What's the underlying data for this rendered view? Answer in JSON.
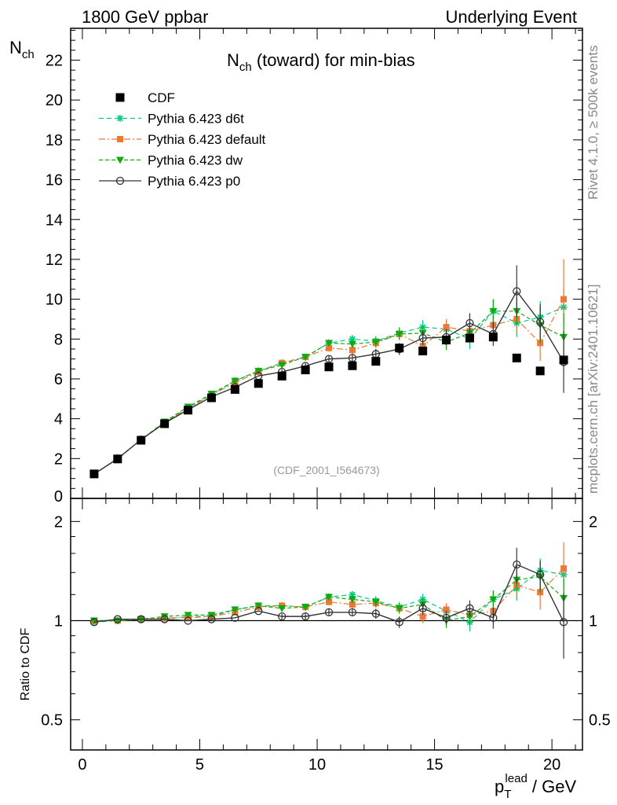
{
  "header": {
    "left": "1800 GeV ppbar",
    "right": "Underlying Event"
  },
  "side_labels": {
    "rivet": "Rivet 4.1.0, ≥ 500k events",
    "mcplots": "mcplots.cern.ch [arXiv:2401.10621]"
  },
  "colors": {
    "CDF": "#000000",
    "d6t": "#00cc88",
    "default": "#ee7733",
    "dw": "#11aa11",
    "p0": "#333333"
  },
  "chart_data": [
    {
      "type": "scatter",
      "title_main": "N",
      "title_sub": "ch",
      "title_rest": " (toward) for min-bias",
      "ylabel_main": "N",
      "ylabel_sub": "ch",
      "watermark": "(CDF_2001_I564673)",
      "ylim": [
        0,
        23.6
      ],
      "xlim": [
        -0.5,
        21.3
      ],
      "y_ticks": [
        "2",
        "4",
        "6",
        "8",
        "10",
        "12",
        "14",
        "16",
        "18",
        "20",
        "22"
      ],
      "y_tick_values": [
        2,
        4,
        6,
        8,
        10,
        12,
        14,
        16,
        18,
        20,
        22
      ],
      "y_zero_label": "0",
      "x": [
        0.5,
        1.5,
        2.5,
        3.5,
        4.5,
        5.5,
        6.5,
        7.5,
        8.5,
        9.5,
        10.5,
        11.5,
        12.5,
        13.5,
        14.5,
        15.5,
        16.5,
        17.5,
        18.5,
        19.5,
        20.5
      ],
      "series": [
        {
          "name": "CDF",
          "key": "CDF",
          "label": "CDF",
          "values": [
            1.23,
            1.98,
            2.92,
            3.75,
            4.43,
            5.05,
            5.47,
            5.77,
            6.14,
            6.45,
            6.6,
            6.66,
            6.88,
            7.55,
            7.4,
            7.95,
            8.05,
            8.1,
            7.05,
            6.4,
            6.95
          ]
        },
        {
          "name": "Pythia 6.423 d6t",
          "key": "d6t",
          "label": "Pythia 6.423 d6t",
          "values": [
            1.22,
            1.98,
            2.95,
            3.8,
            4.55,
            5.2,
            5.9,
            6.4,
            6.8,
            7.1,
            7.8,
            8.0,
            7.9,
            8.3,
            8.6,
            8.5,
            8.0,
            9.4,
            8.8,
            9.1,
            9.6
          ],
          "errors": [
            0.02,
            0.02,
            0.03,
            0.04,
            0.05,
            0.06,
            0.08,
            0.1,
            0.12,
            0.15,
            0.18,
            0.2,
            0.25,
            0.3,
            0.35,
            0.4,
            0.5,
            0.6,
            0.7,
            0.8,
            0.9
          ]
        },
        {
          "name": "Pythia 6.423 default",
          "key": "default",
          "label": "Pythia 6.423 default",
          "values": [
            1.23,
            1.98,
            2.95,
            3.82,
            4.5,
            5.2,
            5.8,
            6.35,
            6.8,
            7.1,
            7.55,
            7.45,
            7.8,
            8.25,
            7.65,
            8.6,
            8.4,
            8.7,
            9.0,
            7.8,
            10.0
          ],
          "errors": [
            0.02,
            0.02,
            0.03,
            0.04,
            0.05,
            0.06,
            0.08,
            0.1,
            0.12,
            0.15,
            0.18,
            0.2,
            0.25,
            0.3,
            0.35,
            0.4,
            0.5,
            0.6,
            0.7,
            0.9,
            2.0
          ]
        },
        {
          "name": "Pythia 6.423 dw",
          "key": "dw",
          "label": "Pythia 6.423 dw",
          "values": [
            1.23,
            1.98,
            2.95,
            3.85,
            4.6,
            5.25,
            5.9,
            6.4,
            6.7,
            7.1,
            7.8,
            7.75,
            7.85,
            8.25,
            8.3,
            7.85,
            8.3,
            9.4,
            9.4,
            8.7,
            8.1
          ],
          "errors": [
            0.02,
            0.02,
            0.03,
            0.04,
            0.05,
            0.06,
            0.08,
            0.1,
            0.12,
            0.15,
            0.18,
            0.2,
            0.25,
            0.3,
            0.35,
            0.4,
            0.5,
            0.6,
            0.7,
            0.9,
            1.2
          ]
        },
        {
          "name": "Pythia 6.423 p0",
          "key": "p0",
          "label": "Pythia 6.423 p0",
          "values": [
            1.22,
            2.0,
            2.95,
            3.78,
            4.45,
            5.1,
            5.58,
            6.15,
            6.35,
            6.65,
            7.0,
            7.05,
            7.25,
            7.5,
            8.05,
            8.1,
            8.8,
            8.25,
            10.4,
            8.85,
            6.85
          ],
          "errors": [
            0.02,
            0.02,
            0.03,
            0.04,
            0.05,
            0.06,
            0.08,
            0.1,
            0.12,
            0.15,
            0.18,
            0.2,
            0.25,
            0.3,
            0.35,
            0.4,
            0.5,
            0.6,
            1.3,
            0.9,
            1.55
          ]
        }
      ]
    },
    {
      "type": "line",
      "ylabel": "Ratio to CDF",
      "xlabel_main": "p",
      "xlabel_sub": "T",
      "xlabel_sup": "lead",
      "xlabel_rest": " / GeV",
      "y_scale": "log",
      "ylim": [
        0.405,
        2.35
      ],
      "y_ticks": [
        "0.5",
        "1",
        "2"
      ],
      "y_tick_values": [
        0.5,
        1,
        2
      ],
      "x_ticks": [
        "0",
        "5",
        "10",
        "15",
        "20"
      ],
      "x_tick_values": [
        0,
        5,
        10,
        15,
        20
      ],
      "series": [
        {
          "key": "d6t",
          "values": [
            0.99,
            1.0,
            1.01,
            1.01,
            1.03,
            1.03,
            1.08,
            1.11,
            1.11,
            1.1,
            1.18,
            1.2,
            1.15,
            1.1,
            1.16,
            1.07,
            0.99,
            1.16,
            1.25,
            1.42,
            1.38
          ]
        },
        {
          "key": "default",
          "values": [
            1.0,
            1.0,
            1.01,
            1.02,
            1.02,
            1.03,
            1.06,
            1.1,
            1.11,
            1.1,
            1.14,
            1.12,
            1.13,
            1.09,
            1.03,
            1.08,
            1.04,
            1.07,
            1.28,
            1.22,
            1.44
          ]
        },
        {
          "key": "dw",
          "values": [
            1.0,
            1.0,
            1.01,
            1.03,
            1.04,
            1.04,
            1.08,
            1.11,
            1.09,
            1.1,
            1.18,
            1.16,
            1.14,
            1.09,
            1.12,
            1.0,
            1.03,
            1.16,
            1.33,
            1.36,
            1.17
          ]
        },
        {
          "key": "p0",
          "values": [
            0.99,
            1.01,
            1.01,
            1.01,
            1.0,
            1.01,
            1.02,
            1.07,
            1.03,
            1.03,
            1.06,
            1.06,
            1.05,
            0.99,
            1.09,
            1.02,
            1.09,
            1.02,
            1.48,
            1.38,
            0.99
          ]
        }
      ]
    }
  ]
}
